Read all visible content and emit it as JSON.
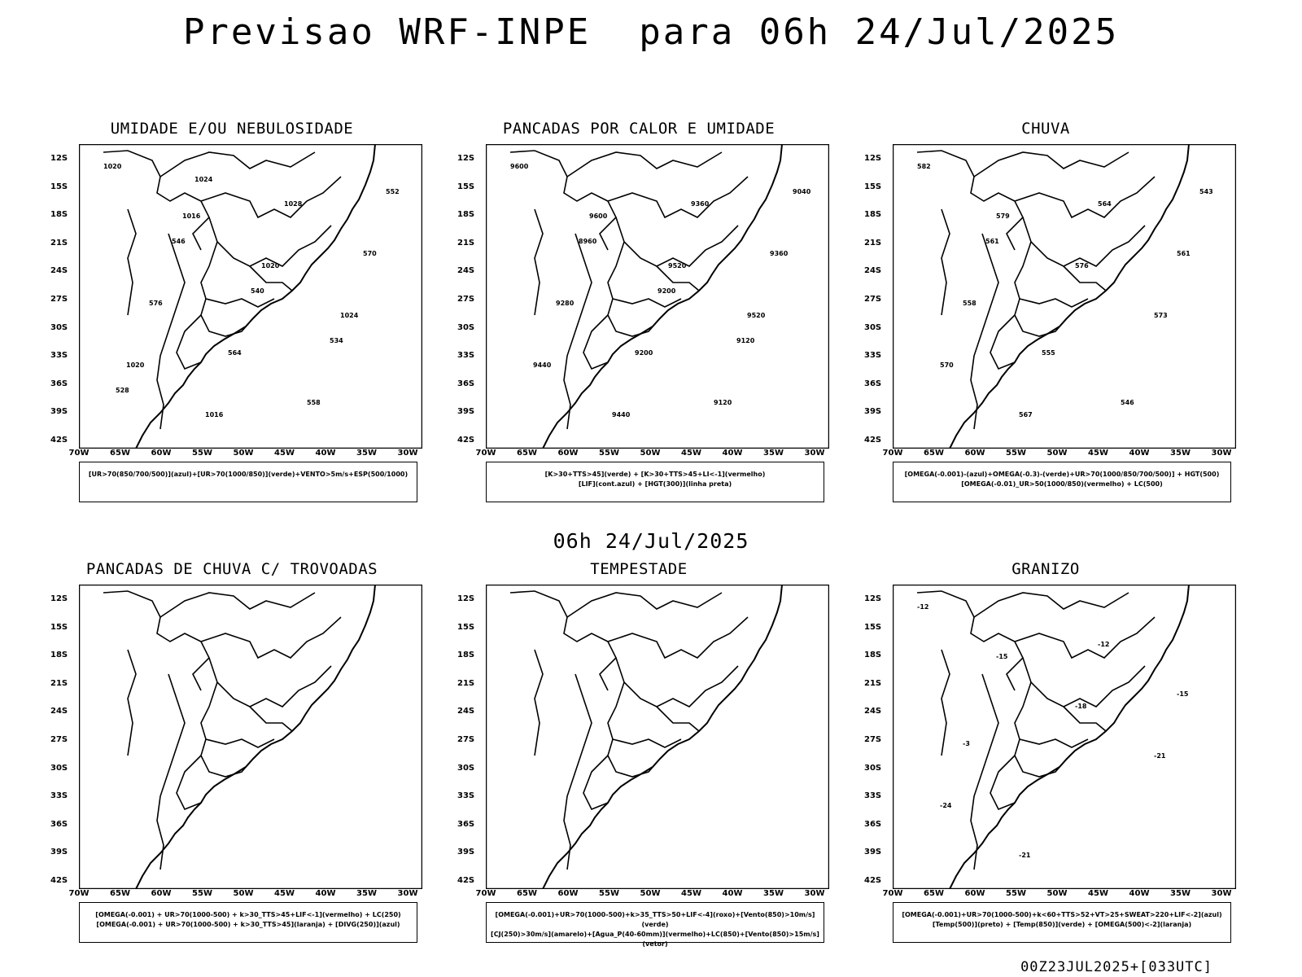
{
  "main_title": "Previsao WRF-INPE  para 06h 24/Jul/2025",
  "mid_title": "06h 24/Jul/2025",
  "footer": "00Z23JUL2025+[033UTC]",
  "lat_labels": [
    "12S",
    "15S",
    "18S",
    "21S",
    "24S",
    "27S",
    "30S",
    "33S",
    "36S",
    "39S",
    "42S"
  ],
  "lon_labels": [
    "70W",
    "65W",
    "60W",
    "55W",
    "50W",
    "45W",
    "40W",
    "35W",
    "30W"
  ],
  "colors": {
    "green": "#1ed41e",
    "red": "#f03c3c",
    "blue": "#3c50f0",
    "orange": "#eb8228",
    "yellow": "#e6dc3c",
    "teal": "#25484a"
  },
  "panels": [
    {
      "title": "UMIDADE E/OU NEBULOSIDADE",
      "legend": [
        "[UR>70(850/700/500)](azul)+[UR>70(1000/850)](verde)+VENTO>5m/s+ESP(500/1000)"
      ],
      "labels": [
        "1020",
        "1016",
        "1020",
        "1024",
        "1020",
        "1016",
        "1028",
        "570",
        "576",
        "564",
        "558",
        "552",
        "546",
        "540",
        "534",
        "528",
        "1024"
      ]
    },
    {
      "title": "PANCADAS POR CALOR E UMIDADE",
      "legend": [
        "[K>30+TTS>45](verde) + [K>30+TTS>45+LI<-1](vermelho)",
        "[LIF](cont.azul) + [HGT(300)](linha preta)"
      ],
      "labels": [
        "9600",
        "9600",
        "9520",
        "9520",
        "9440",
        "9440",
        "9360",
        "9360",
        "9280",
        "9200",
        "9120",
        "9040",
        "8960",
        "9200",
        "9120"
      ]
    },
    {
      "title": "CHUVA",
      "legend": [
        "[OMEGA(-0.001)-(azul)+OMEGA(-0.3)-(verde)+UR>70(1000/850/700/500)] + HGT(500)",
        "[OMEGA(-0.01)_UR>50(1000/850)(vermelho) + LC(500)"
      ],
      "labels": [
        "582",
        "579",
        "576",
        "573",
        "570",
        "567",
        "564",
        "561",
        "558",
        "555",
        "546",
        "543",
        "561"
      ]
    },
    {
      "title": "PANCADAS DE CHUVA C/ TROVOADAS",
      "legend": [
        "[OMEGA(-0.001) + UR>70(1000-500) + k>30_TTS>45+LIF<-1](vermelho) + LC(250)",
        "[OMEGA(-0.001) + UR>70(1000-500) + k>30_TTS>45](laranja) + [DIVG(250)](azul)"
      ],
      "labels": []
    },
    {
      "title": "TEMPESTADE",
      "legend": [
        "[OMEGA(-0.001)+UR>70(1000-500)+k>35_TTS>50+LIF<-4](roxo)+[Vento(850)>10m/s](verde)",
        "[CJ(250)>30m/s](amarelo)+[Agua_P(40-60mm)](vermelho)+LC(850)+[Vento(850)>15m/s](vetor)"
      ],
      "labels": []
    },
    {
      "title": "GRANIZO",
      "legend": [
        "[OMEGA(-0.001)+UR>70(1000-500)+k<60+TTS>52+VT>25+SWEAT>220+LIF<-2](azul)",
        "[Temp(500)](preto) + [Temp(850)](verde) + [OMEGA(500)<-2](laranja)"
      ],
      "labels": [
        "-12",
        "-15",
        "-18",
        "-21",
        "-24",
        "-21",
        "-12",
        "-15",
        "-3"
      ]
    }
  ]
}
